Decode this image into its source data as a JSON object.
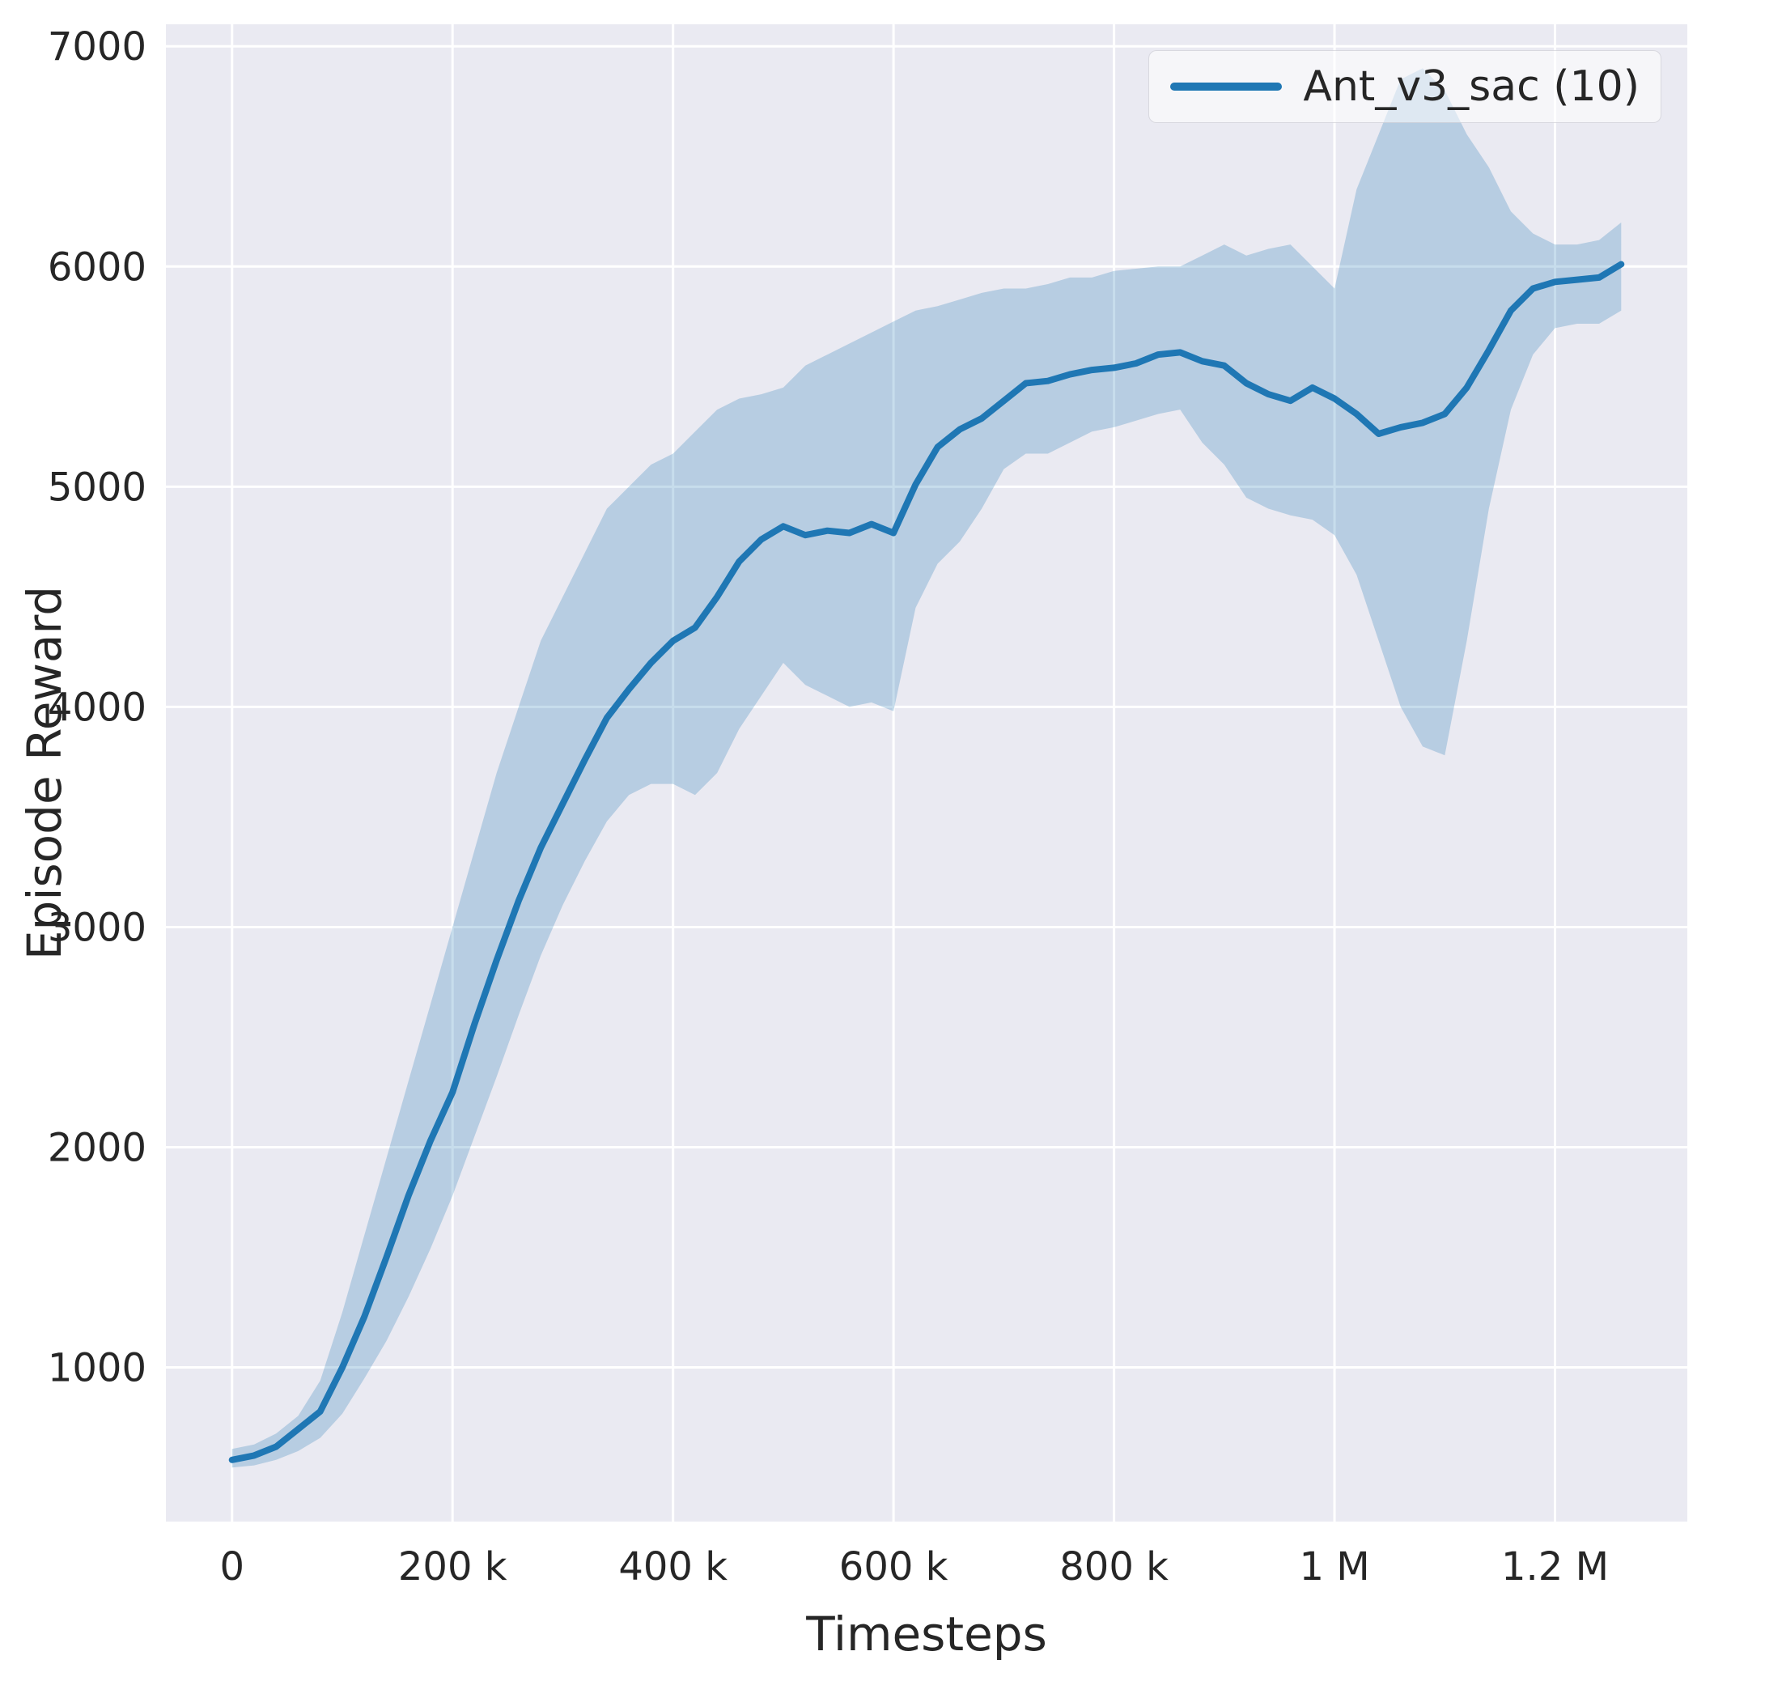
{
  "colors": {
    "line": "#1f77b4",
    "band": "#1f77b4",
    "plot_bg": "#eaeaf2",
    "grid": "#ffffff",
    "text": "#262626",
    "figure_bg": "#ffffff"
  },
  "chart_data": {
    "type": "line",
    "title": "",
    "xlabel": "Timesteps",
    "ylabel": "Episode Reward",
    "xlim": [
      -60000,
      1320000
    ],
    "ylim": [
      300,
      7100
    ],
    "grid": true,
    "legend_position": "upper right",
    "band_opacity": 0.25,
    "xticks": {
      "values": [
        0,
        200000,
        400000,
        600000,
        800000,
        1000000,
        1200000
      ],
      "labels": [
        "0",
        "200 k",
        "400 k",
        "600 k",
        "800 k",
        "1 M",
        "1.2 M"
      ]
    },
    "yticks": {
      "values": [
        1000,
        2000,
        3000,
        4000,
        5000,
        6000,
        7000
      ],
      "labels": [
        "1000",
        "2000",
        "3000",
        "4000",
        "5000",
        "6000",
        "7000"
      ]
    },
    "series": [
      {
        "name": "Ant_v3_sac (10)",
        "x": [
          0,
          20000,
          40000,
          60000,
          80000,
          100000,
          120000,
          140000,
          160000,
          180000,
          200000,
          220000,
          240000,
          260000,
          280000,
          300000,
          320000,
          340000,
          360000,
          380000,
          400000,
          420000,
          440000,
          460000,
          480000,
          500000,
          520000,
          540000,
          560000,
          580000,
          600000,
          620000,
          640000,
          660000,
          680000,
          700000,
          720000,
          740000,
          760000,
          780000,
          800000,
          820000,
          840000,
          860000,
          880000,
          900000,
          920000,
          940000,
          960000,
          980000,
          1000000,
          1020000,
          1040000,
          1060000,
          1080000,
          1100000,
          1120000,
          1140000,
          1160000,
          1180000,
          1200000,
          1220000,
          1240000,
          1260000
        ],
        "mean": [
          580,
          600,
          640,
          720,
          800,
          1000,
          1230,
          1500,
          1780,
          2030,
          2250,
          2560,
          2850,
          3120,
          3360,
          3560,
          3760,
          3950,
          4080,
          4200,
          4300,
          4360,
          4500,
          4660,
          4760,
          4820,
          4780,
          4800,
          4790,
          4830,
          4790,
          5010,
          5180,
          5260,
          5310,
          5390,
          5470,
          5480,
          5510,
          5530,
          5540,
          5560,
          5600,
          5610,
          5570,
          5550,
          5470,
          5420,
          5390,
          5450,
          5400,
          5330,
          5240,
          5270,
          5290,
          5330,
          5450,
          5620,
          5800,
          5900,
          5930,
          5940,
          5950,
          6010
        ],
        "band_lower": [
          545,
          555,
          580,
          620,
          680,
          790,
          950,
          1120,
          1320,
          1540,
          1780,
          2050,
          2320,
          2600,
          2870,
          3100,
          3300,
          3480,
          3600,
          3650,
          3650,
          3600,
          3700,
          3900,
          4050,
          4200,
          4100,
          4050,
          4000,
          4020,
          3980,
          4450,
          4650,
          4750,
          4900,
          5080,
          5150,
          5150,
          5200,
          5250,
          5270,
          5300,
          5330,
          5350,
          5200,
          5100,
          4950,
          4900,
          4870,
          4850,
          4780,
          4600,
          4300,
          4000,
          3820,
          3780,
          4300,
          4900,
          5350,
          5600,
          5720,
          5740,
          5740,
          5800
        ],
        "band_upper": [
          630,
          650,
          700,
          780,
          940,
          1250,
          1600,
          1950,
          2300,
          2650,
          3000,
          3350,
          3700,
          4000,
          4300,
          4500,
          4700,
          4900,
          5000,
          5100,
          5150,
          5250,
          5350,
          5400,
          5420,
          5450,
          5550,
          5600,
          5650,
          5700,
          5750,
          5800,
          5820,
          5850,
          5880,
          5900,
          5900,
          5920,
          5950,
          5950,
          5980,
          5990,
          6000,
          6000,
          6050,
          6100,
          6050,
          6080,
          6100,
          6000,
          5900,
          6350,
          6600,
          6850,
          6900,
          6800,
          6600,
          6450,
          6250,
          6150,
          6100,
          6100,
          6120,
          6200
        ]
      }
    ]
  }
}
